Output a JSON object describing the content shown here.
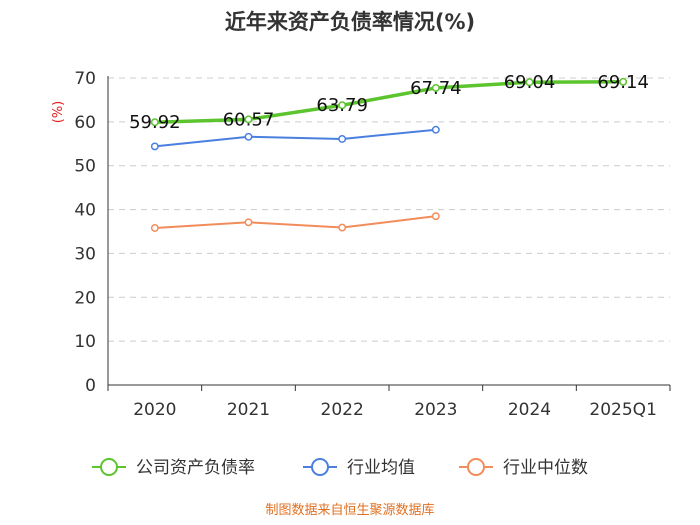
{
  "chart_data": {
    "type": "line",
    "title": "近年来资产负债率情况(%)",
    "ylabel": "(%)",
    "xlabel": "",
    "categories": [
      "2020",
      "2021",
      "2022",
      "2023",
      "2024",
      "2025Q1"
    ],
    "ylim": [
      0,
      70
    ],
    "yticks": [
      0,
      10,
      20,
      30,
      40,
      50,
      60,
      70
    ],
    "grid": true,
    "legend_position": "bottom",
    "series": [
      {
        "name": "公司资产负债率",
        "color": "#5cc42f",
        "values": [
          59.92,
          60.57,
          63.79,
          67.74,
          69.04,
          69.14
        ],
        "labels": [
          "59.92",
          "60.57",
          "63.79",
          "67.74",
          "69.04",
          "69.14"
        ]
      },
      {
        "name": "行业均值",
        "color": "#4a7fe0",
        "values": [
          54.4,
          56.6,
          56.1,
          58.2,
          null,
          null
        ]
      },
      {
        "name": "行业中位数",
        "color": "#f28c5a",
        "values": [
          35.8,
          37.1,
          35.9,
          38.5,
          null,
          null
        ]
      }
    ],
    "source": "制图数据来自恒生聚源数据库"
  }
}
